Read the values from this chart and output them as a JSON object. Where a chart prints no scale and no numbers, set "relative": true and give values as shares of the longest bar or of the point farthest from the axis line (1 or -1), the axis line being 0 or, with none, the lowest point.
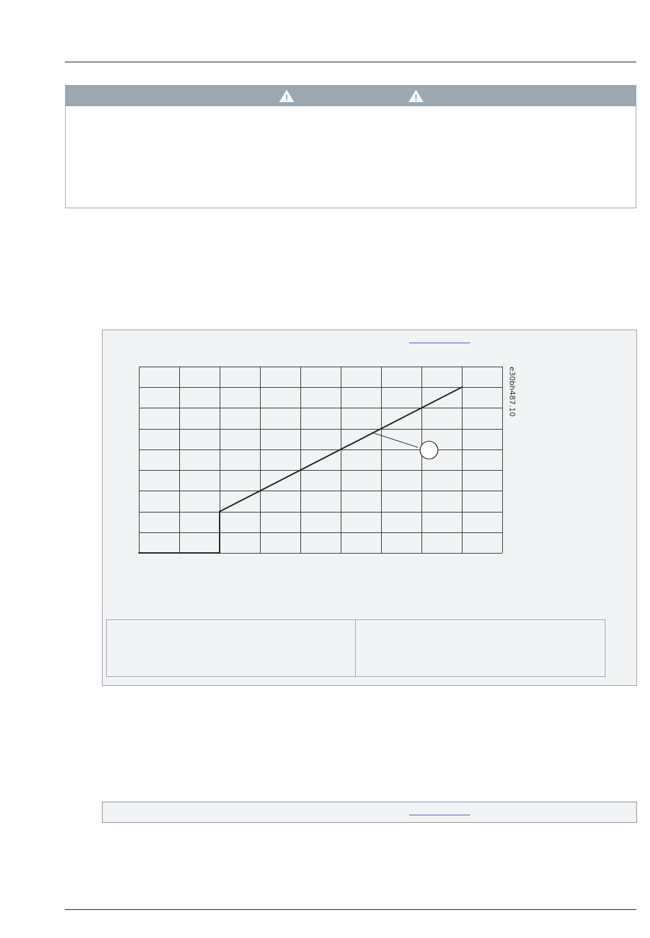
{
  "chart_data": {
    "type": "line",
    "categories": [
      null,
      null,
      null,
      null,
      null,
      null,
      null,
      null,
      null,
      null
    ],
    "relative": true,
    "grid": true,
    "series": [
      {
        "type": "step",
        "color": "#222222",
        "values": [
          0,
          0,
          0.25,
          null,
          null,
          null,
          null,
          null,
          null,
          null
        ]
      },
      {
        "type": "line",
        "color": "#222222",
        "values": [
          null,
          null,
          0.25,
          0.375,
          0.5,
          0.625,
          0.75,
          0.875,
          1,
          null
        ]
      }
    ],
    "annotations": [
      "e30bh487.10"
    ]
  }
}
